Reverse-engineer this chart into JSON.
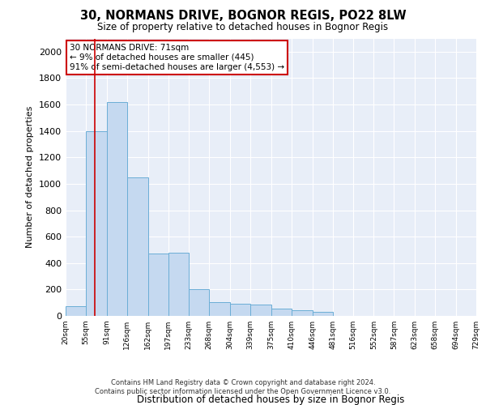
{
  "title_line1": "30, NORMANS DRIVE, BOGNOR REGIS, PO22 8LW",
  "title_line2": "Size of property relative to detached houses in Bognor Regis",
  "xlabel": "Distribution of detached houses by size in Bognor Regis",
  "ylabel": "Number of detached properties",
  "footer_line1": "Contains HM Land Registry data © Crown copyright and database right 2024.",
  "footer_line2": "Contains public sector information licensed under the Open Government Licence v3.0.",
  "bin_edges": [
    20,
    55,
    91,
    126,
    162,
    197,
    233,
    268,
    304,
    339,
    375,
    410,
    446,
    481,
    516,
    552,
    587,
    623,
    658,
    694,
    729
  ],
  "bar_heights": [
    75,
    1400,
    1620,
    1050,
    470,
    480,
    200,
    105,
    95,
    85,
    55,
    45,
    30,
    0,
    0,
    0,
    0,
    0,
    0,
    0
  ],
  "bar_color": "#c5d9f0",
  "bar_edge_color": "#6baed6",
  "annotation_text": "30 NORMANS DRIVE: 71sqm\n← 9% of detached houses are smaller (445)\n91% of semi-detached houses are larger (4,553) →",
  "red_line_x": 71,
  "ylim": [
    0,
    2100
  ],
  "yticks": [
    0,
    200,
    400,
    600,
    800,
    1000,
    1200,
    1400,
    1600,
    1800,
    2000
  ],
  "fig_bg_color": "#ffffff",
  "plot_bg_color": "#e8eef8",
  "annotation_box_facecolor": "#ffffff",
  "annotation_box_edge": "#cc0000",
  "red_line_color": "#cc0000",
  "grid_color": "#ffffff"
}
